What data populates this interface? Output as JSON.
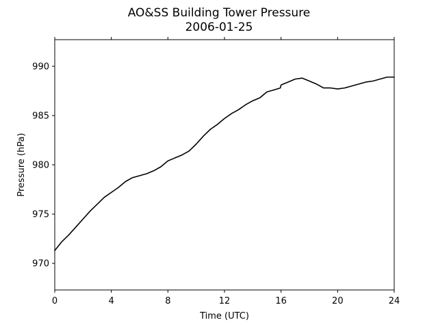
{
  "chart_data": {
    "type": "line",
    "title": "AO&SS Building Tower Pressure",
    "subtitle": "2006-01-25",
    "xlabel": "Time (UTC)",
    "ylabel": "Pressure (hPa)",
    "xlim": [
      0,
      24
    ],
    "ylim": [
      967.3,
      992.7
    ],
    "x_ticks": [
      0,
      4,
      8,
      12,
      16,
      20,
      24
    ],
    "y_ticks": [
      970,
      975,
      980,
      985,
      990
    ],
    "grid": false,
    "line_color": "#000000",
    "series": [
      {
        "x": [
          0,
          0.5,
          1,
          1.5,
          2,
          2.5,
          3,
          3.5,
          4,
          4.5,
          5,
          5.5,
          6,
          6.5,
          7,
          7.5,
          8,
          8.5,
          9,
          9.5,
          10,
          10.5,
          11,
          11.5,
          12,
          12.5,
          13,
          13.5,
          14,
          14.5,
          15,
          15.5,
          15.95,
          16,
          16.5,
          17,
          17.5,
          18,
          18.5,
          19,
          19.5,
          20,
          20.5,
          21,
          21.5,
          22,
          22.5,
          23,
          23.5,
          24
        ],
        "y": [
          971.3,
          972.2,
          972.9,
          973.7,
          974.5,
          975.3,
          976.0,
          976.7,
          977.2,
          977.7,
          978.3,
          978.7,
          978.9,
          979.1,
          979.4,
          979.8,
          980.4,
          980.7,
          981.0,
          981.4,
          982.1,
          982.9,
          983.6,
          984.1,
          984.7,
          985.2,
          985.6,
          986.1,
          986.5,
          986.8,
          987.4,
          987.6,
          987.8,
          988.1,
          988.4,
          988.7,
          988.8,
          988.5,
          988.2,
          987.8,
          987.8,
          987.7,
          987.8,
          988.0,
          988.2,
          988.4,
          988.5,
          988.7,
          988.9,
          988.9
        ]
      }
    ]
  }
}
